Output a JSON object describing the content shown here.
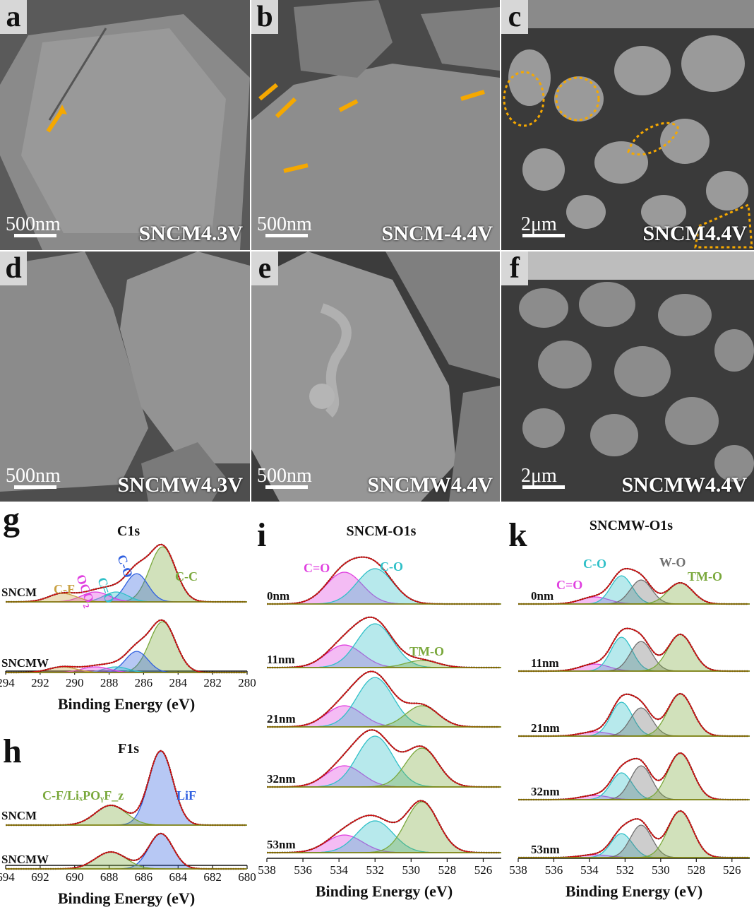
{
  "sem_panels": [
    {
      "id": "a",
      "scale": "500nm",
      "sample": "SNCM4.3V"
    },
    {
      "id": "b",
      "scale": "500nm",
      "sample": "SNCM-4.4V"
    },
    {
      "id": "c",
      "scale": "2μm",
      "sample": "SNCM4.4V"
    },
    {
      "id": "d",
      "scale": "500nm",
      "sample": "SNCMW4.3V"
    },
    {
      "id": "e",
      "scale": "500nm",
      "sample": "SNCMW4.4V"
    },
    {
      "id": "f",
      "scale": "2μm",
      "sample": "SNCMW4.4V"
    }
  ],
  "colors": {
    "cc": "#7aa83c",
    "co": "#30c0c8",
    "ceqo": "#e040e0",
    "cf": "#c8a040",
    "lif": "#3060e0",
    "wo": "#707070",
    "fit": "#d01010",
    "data": "#111111",
    "base": "#808000"
  },
  "chart_data": [
    {
      "id": "g",
      "type": "line",
      "title": "C1s",
      "xlabel": "Binding Energy (eV)",
      "xlim": [
        294,
        280
      ],
      "xticks": [
        "294",
        "292",
        "290",
        "288",
        "286",
        "284",
        "282",
        "280"
      ],
      "series": [
        {
          "name": "SNCM"
        },
        {
          "name": "SNCMW"
        }
      ],
      "peaks": [
        {
          "label": "C-C",
          "center": 284.9
        },
        {
          "label": "C-O",
          "center": 286.4
        },
        {
          "label": "C=O",
          "center": 287.6
        },
        {
          "label": "OCO",
          "sub": "2",
          "center": 288.8
        },
        {
          "label": "C-F",
          "center": 290.7
        }
      ]
    },
    {
      "id": "h",
      "type": "line",
      "title": "F1s",
      "xlabel": "Binding Energy (eV)",
      "xlim": [
        694,
        680
      ],
      "xticks": [
        "694",
        "692",
        "690",
        "688",
        "686",
        "684",
        "682",
        "680"
      ],
      "series": [
        {
          "name": "SNCM"
        },
        {
          "name": "SNCMW"
        }
      ],
      "peaks": [
        {
          "label": "LiF",
          "center": 685.0
        },
        {
          "label": "C-F/LiₓPOᵧF_z",
          "center": 687.9
        }
      ]
    },
    {
      "id": "i",
      "type": "line",
      "title": "SNCM-O1s",
      "xlabel": "Binding Energy (eV)",
      "xlim": [
        538,
        525
      ],
      "xticks": [
        "538",
        "536",
        "534",
        "532",
        "530",
        "528",
        "526"
      ],
      "series": [
        {
          "name": "0nm"
        },
        {
          "name": "11nm"
        },
        {
          "name": "21nm"
        },
        {
          "name": "32nm"
        },
        {
          "name": "53nm"
        }
      ],
      "peaks": [
        {
          "label": "C=O",
          "center": 533.7
        },
        {
          "label": "C-O",
          "center": 532.0
        },
        {
          "label": "TM-O",
          "center": 529.4
        }
      ]
    },
    {
      "id": "k",
      "type": "line",
      "title": "SNCMW-O1s",
      "xlabel": "Binding Energy (eV)",
      "xlim": [
        538,
        525
      ],
      "xticks": [
        "538",
        "536",
        "534",
        "532",
        "530",
        "528",
        "526"
      ],
      "series": [
        {
          "name": "0nm"
        },
        {
          "name": "11nm"
        },
        {
          "name": "21nm"
        },
        {
          "name": "32nm"
        },
        {
          "name": "53nm"
        }
      ],
      "peaks": [
        {
          "label": "C=O",
          "center": 533.7
        },
        {
          "label": "C-O",
          "center": 532.2
        },
        {
          "label": "W-O",
          "center": 531.1
        },
        {
          "label": "TM-O",
          "center": 528.9
        }
      ]
    }
  ]
}
